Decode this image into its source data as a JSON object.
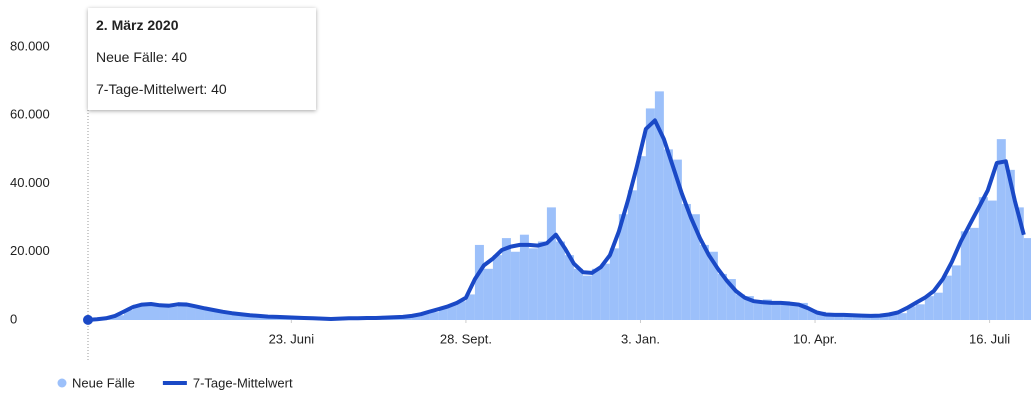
{
  "chart_data": {
    "type": "combo",
    "x": [
      0,
      5,
      10,
      15,
      20,
      25,
      30,
      35,
      40,
      45,
      50,
      55,
      60,
      65,
      70,
      75,
      80,
      85,
      90,
      95,
      100,
      105,
      110,
      115,
      120,
      125,
      130,
      135,
      140,
      145,
      150,
      155,
      160,
      165,
      170,
      175,
      180,
      185,
      190,
      195,
      200,
      205,
      210,
      215,
      220,
      225,
      230,
      235,
      240,
      245,
      250,
      255,
      260,
      265,
      270,
      275,
      280,
      285,
      290,
      295,
      300,
      305,
      310,
      315,
      320,
      325,
      330,
      335,
      340,
      345,
      350,
      355,
      360,
      365,
      370,
      375,
      380,
      385,
      390,
      395,
      400,
      405,
      410,
      415,
      420,
      425,
      430,
      435,
      440,
      445,
      450,
      455,
      460,
      465,
      470,
      475,
      480,
      485,
      490,
      495,
      500,
      505,
      510,
      515,
      520
    ],
    "xlim": [
      0,
      524
    ],
    "xticks": [
      {
        "value": 113,
        "label": "23. Juni"
      },
      {
        "value": 210,
        "label": "28. Sept."
      },
      {
        "value": 307,
        "label": "3. Jan."
      },
      {
        "value": 404,
        "label": "10. Apr."
      },
      {
        "value": 501,
        "label": "16. Juli"
      }
    ],
    "ylim": [
      0,
      80000
    ],
    "yticks": [
      0,
      {
        "value": 20000,
        "label": "20.000"
      },
      {
        "value": 40000,
        "label": "40.000"
      },
      {
        "value": 60000,
        "label": "60.000"
      },
      {
        "value": 80000,
        "label": "80.000"
      }
    ],
    "grid": false,
    "legend": "bottom-left",
    "series": [
      {
        "name": "Neue Fälle",
        "type": "bar",
        "color": "#9cc0fa",
        "values": [
          40,
          150,
          600,
          1400,
          2900,
          4500,
          5000,
          4300,
          4800,
          3900,
          5200,
          4100,
          3600,
          3000,
          2500,
          2200,
          1600,
          1900,
          1300,
          1100,
          1100,
          700,
          900,
          600,
          650,
          400,
          450,
          250,
          500,
          450,
          600,
          500,
          700,
          800,
          700,
          1100,
          1400,
          1900,
          2300,
          3800,
          4500,
          5500,
          7500,
          22000,
          15000,
          19000,
          24000,
          20000,
          25000,
          21000,
          23000,
          33000,
          23000,
          19000,
          15000,
          13000,
          15000,
          16500,
          21000,
          31000,
          38000,
          48000,
          62000,
          67000,
          50000,
          47000,
          34000,
          31000,
          22000,
          20000,
          13500,
          12000,
          7500,
          7000,
          5000,
          6000,
          4500,
          5500,
          4300,
          5000,
          3000,
          2400,
          1400,
          1700,
          1300,
          1600,
          1100,
          1400,
          1200,
          1800,
          2000,
          4000,
          4600,
          7000,
          8000,
          13000,
          16000,
          26000,
          27000,
          36000,
          35000,
          53000,
          44000,
          33000,
          24000
        ]
      },
      {
        "name": "7-Tage-Mittelwert",
        "type": "line",
        "color": "#1a49c6",
        "values": [
          40,
          200,
          500,
          1200,
          2500,
          3800,
          4500,
          4700,
          4300,
          4200,
          4600,
          4500,
          4000,
          3400,
          2900,
          2400,
          2000,
          1700,
          1400,
          1200,
          1000,
          900,
          800,
          700,
          600,
          500,
          400,
          300,
          400,
          500,
          500,
          600,
          600,
          700,
          800,
          900,
          1200,
          1700,
          2500,
          3200,
          4000,
          5000,
          6500,
          12000,
          16000,
          18000,
          20500,
          21500,
          22000,
          22000,
          21800,
          22500,
          25000,
          21000,
          16500,
          14000,
          13800,
          15500,
          19000,
          26000,
          35000,
          45000,
          56000,
          58500,
          53000,
          45000,
          37000,
          30000,
          24000,
          19000,
          15000,
          11500,
          8500,
          6500,
          5500,
          5200,
          5000,
          5000,
          4800,
          4500,
          3500,
          2200,
          1600,
          1500,
          1500,
          1400,
          1300,
          1200,
          1300,
          1600,
          2200,
          3500,
          5000,
          6500,
          8500,
          12000,
          17000,
          23000,
          28000,
          33000,
          38000,
          46000,
          46500,
          35000,
          25000
        ]
      }
    ],
    "tooltip": {
      "title": "2. März 2020",
      "lines": [
        "Neue Fälle: 40",
        "7-Tage-Mittelwert: 40"
      ]
    }
  }
}
